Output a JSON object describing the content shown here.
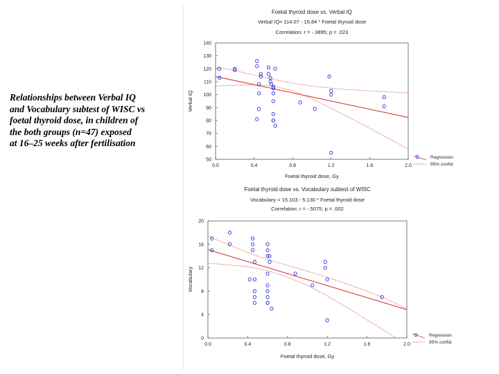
{
  "caption": {
    "lines": [
      "Relationships between Verbal IQ",
      " and Vocabulary subtest of WISC vs",
      "foetal thyroid dose, in children of",
      "the both groups (n=47) exposed",
      " at 16–25 weeks after fertilisation"
    ]
  },
  "chart_data": [
    {
      "type": "scatter",
      "title": "Foetal thyroid dose vs. Verbal IQ",
      "subtitle": "Verbal IQ= 114.07 - 15.84 * Foetal thyroid dose",
      "correlation": "Correlation: r = -.3895; p = .023",
      "xlabel": "Foetal thyroid dose, Gy",
      "ylabel": "Verbal IQ",
      "xlim": [
        0,
        2.0
      ],
      "ylim": [
        50,
        140
      ],
      "xticks": [
        "0.0",
        "0.4",
        "0.8",
        "1.2",
        "1.6",
        "2.0"
      ],
      "yticks": [
        "50",
        "60",
        "70",
        "80",
        "90",
        "100",
        "110",
        "120",
        "130",
        "140"
      ],
      "regression": {
        "intercept": 114.07,
        "slope": -15.84
      },
      "confidence_band": {
        "x": [
          0.0,
          0.2,
          0.4,
          0.6,
          0.8,
          1.0,
          1.2,
          1.4,
          1.6,
          1.8,
          2.0
        ],
        "upper": [
          121.5,
          118.6,
          115.2,
          111.8,
          108.9,
          106.6,
          105.0,
          103.8,
          102.9,
          102.1,
          101.4
        ],
        "lower": [
          106.6,
          107.2,
          107.7,
          106.8,
          103.0,
          96.8,
          89.5,
          81.8,
          74.0,
          66.0,
          58.0
        ]
      },
      "legend": [
        "Regression",
        "95% confid."
      ],
      "legend_position": "lower-right outside",
      "points": {
        "x": [
          0.04,
          0.04,
          0.2,
          0.2,
          0.43,
          0.43,
          0.47,
          0.47,
          0.45,
          0.45,
          0.45,
          0.43,
          0.55,
          0.55,
          0.57,
          0.57,
          0.58,
          0.6,
          0.6,
          0.6,
          0.6,
          0.6,
          0.6,
          0.6,
          0.62,
          0.62,
          0.88,
          1.03,
          1.18,
          1.2,
          1.2,
          1.2,
          1.75,
          1.75
        ],
        "y": [
          120,
          113,
          120,
          119,
          126,
          122,
          116,
          114,
          108,
          101,
          89,
          81,
          121,
          116,
          113,
          110,
          108,
          106,
          105,
          101,
          95,
          85,
          80,
          80,
          76,
          120,
          94,
          89,
          114,
          103,
          100,
          55,
          98,
          91
        ]
      },
      "colors": {
        "points": "#2b2bd9",
        "regression": "#d63a3a",
        "confidence": "#d63a3a"
      }
    },
    {
      "type": "scatter",
      "title": "Foetal thyroid dose vs. Vocabulary subtest of WISC",
      "subtitle": "Vocabulary = 15.103 - 5.130 * Foetal thyroid dose",
      "correlation": "Correlation: r = -.5075; p = .002",
      "xlabel": "Foetal thyroid dose, Gy",
      "ylabel": "Vocabulary",
      "xlim": [
        0,
        2.0
      ],
      "ylim": [
        0,
        20
      ],
      "xticks": [
        "0.0",
        "0.4",
        "0.8",
        "1.2",
        "1.6",
        "2.0"
      ],
      "yticks": [
        "0",
        "4",
        "8",
        "12",
        "16",
        "20"
      ],
      "regression": {
        "intercept": 15.103,
        "slope": -5.13
      },
      "confidence_band": {
        "x": [
          0.0,
          0.2,
          0.4,
          0.6,
          0.8,
          1.0,
          1.2,
          1.4,
          1.6,
          1.8,
          2.0
        ],
        "upper": [
          17.4,
          16.0,
          14.6,
          13.4,
          12.4,
          11.4,
          10.4,
          9.2,
          8.0,
          6.6,
          5.0
        ],
        "lower": [
          12.8,
          12.5,
          12.2,
          11.5,
          10.4,
          9.0,
          7.2,
          5.2,
          3.1,
          1.0,
          -1.2
        ]
      },
      "legend": [
        "Regression",
        "95% confid."
      ],
      "legend_position": "lower-right outside",
      "points": {
        "x": [
          0.04,
          0.04,
          0.22,
          0.22,
          0.42,
          0.45,
          0.45,
          0.45,
          0.47,
          0.47,
          0.47,
          0.47,
          0.47,
          0.6,
          0.6,
          0.6,
          0.62,
          0.62,
          0.6,
          0.6,
          0.6,
          0.6,
          0.6,
          0.6,
          0.64,
          0.88,
          1.05,
          1.18,
          1.18,
          1.2,
          1.2,
          1.75
        ],
        "y": [
          17,
          15,
          18,
          16,
          10,
          17,
          16,
          15,
          13,
          10,
          8,
          7,
          6,
          16,
          15,
          14,
          14,
          13,
          11,
          9,
          8,
          7,
          6,
          6,
          5,
          11,
          9,
          13,
          12,
          10,
          3,
          7
        ]
      },
      "colors": {
        "points": "#2b2bd9",
        "regression": "#d63a3a",
        "confidence": "#d63a3a"
      }
    }
  ]
}
